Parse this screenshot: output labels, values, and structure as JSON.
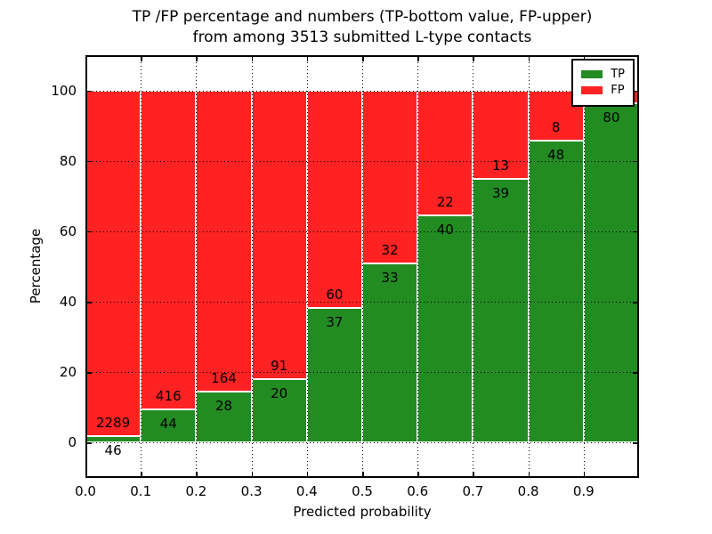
{
  "chart_data": {
    "type": "bar",
    "stacked": true,
    "title_line1": "TP /FP percentage and numbers (TP-bottom value, FP-upper)",
    "title_line2": "from among 3513 submitted L-type contacts",
    "total_submitted_contacts": 3513,
    "xlabel": "Predicted probability",
    "ylabel": "Percentage",
    "xlim": [
      0,
      1
    ],
    "ylim": [
      -10,
      110
    ],
    "x_tick_labels": [
      "0.0",
      "0.1",
      "0.2",
      "0.3",
      "0.4",
      "0.5",
      "0.6",
      "0.7",
      "0.8",
      "0.9"
    ],
    "y_tick_labels": [
      "0",
      "20",
      "40",
      "60",
      "80",
      "100"
    ],
    "grid": "dotted-black-both-axes",
    "bin_starts": [
      0.0,
      0.1,
      0.2,
      0.3,
      0.4,
      0.5,
      0.6,
      0.7,
      0.8,
      0.9
    ],
    "bin_width": 0.1,
    "series": [
      {
        "name": "TP",
        "position": "bottom",
        "color": "#228b22",
        "counts": [
          46,
          44,
          28,
          20,
          37,
          33,
          40,
          39,
          48,
          80
        ]
      },
      {
        "name": "FP",
        "position": "top",
        "color": "#ff2222",
        "counts": [
          2289,
          416,
          164,
          91,
          60,
          32,
          22,
          13,
          8,
          null
        ]
      }
    ],
    "tp_pct": [
      1.97,
      9.57,
      14.58,
      18.02,
      38.14,
      50.77,
      64.52,
      75.0,
      85.71,
      96.39
    ],
    "legend": {
      "position": "upper right",
      "items": [
        {
          "label": "TP",
          "color": "#228b22"
        },
        {
          "label": "FP",
          "color": "#ff2222"
        }
      ]
    }
  }
}
